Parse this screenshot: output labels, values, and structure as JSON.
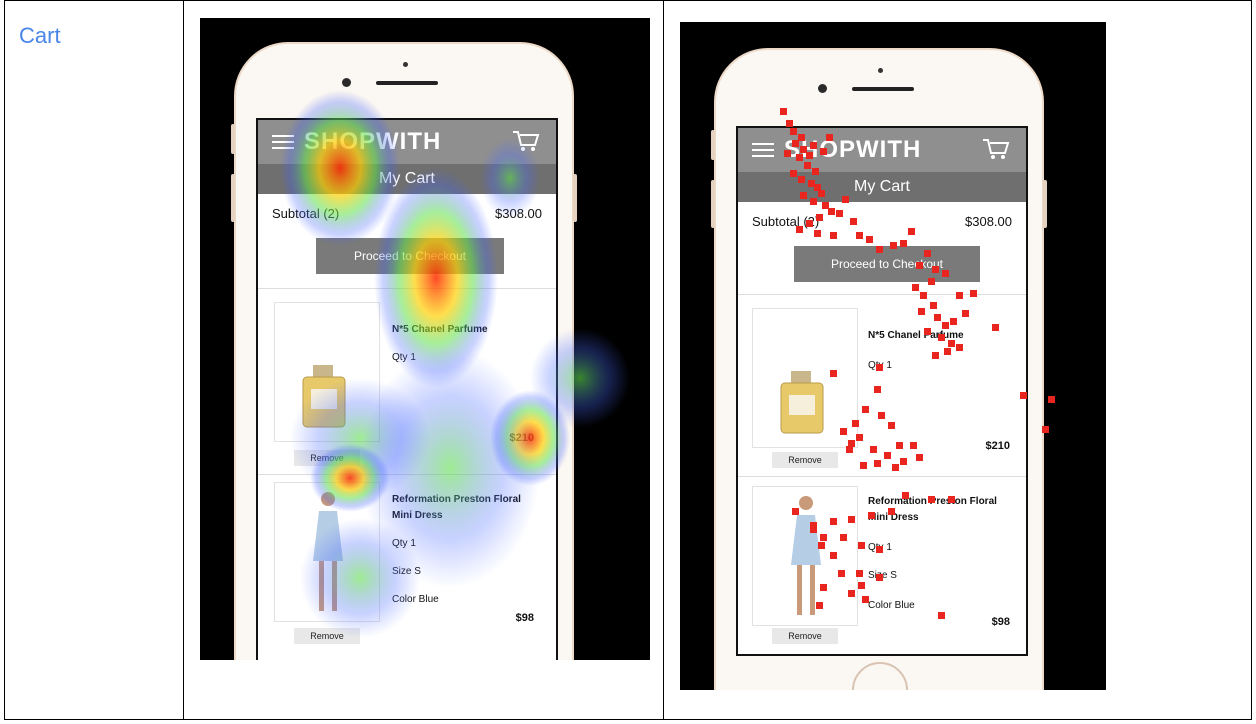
{
  "row": {
    "label": "Cart"
  },
  "app": {
    "brand": "SHOPWITH",
    "title": "My Cart",
    "subtotal_label": "Subtotal (2)",
    "subtotal_value": "$308.00",
    "checkout_label": "Proceed to Checkout",
    "remove_label": "Remove",
    "items": [
      {
        "name_line1": "N*5 Chanel Parfume",
        "name_line2": "",
        "qty": "Qty 1",
        "size": "",
        "color": "",
        "price": "$210"
      },
      {
        "name_line1": "Reformation Preston Floral",
        "name_line2": "Mini Dress",
        "qty": "Qty 1",
        "size": "Size S",
        "color": "Color Blue",
        "price": "$98"
      }
    ]
  },
  "colors": {
    "label_blue": "#4a86e8",
    "header_gray": "#8f8f8f",
    "gaze_red": "#e8251e"
  },
  "icons": {
    "menu": "hamburger-menu-icon",
    "cart": "shopping-cart-icon",
    "perfume": "perfume-bottle-icon",
    "dress": "dress-model-icon"
  }
}
